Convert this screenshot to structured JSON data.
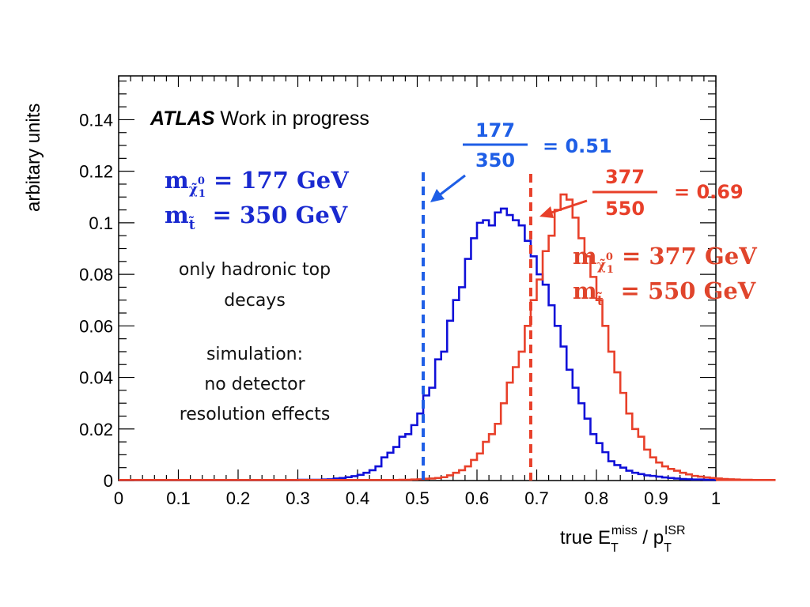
{
  "chart_data": {
    "type": "histogram",
    "xlabel": {
      "main": "true E",
      "sub1": "T",
      "sup1": "miss",
      "slash": " / p",
      "sub2": "T",
      "sup2": "ISR"
    },
    "ylabel": "arbitary units",
    "xlim": [
      0,
      1
    ],
    "ylim": [
      0,
      0.157
    ],
    "x_ticks": [
      "0",
      "0.1",
      "0.2",
      "0.3",
      "0.4",
      "0.5",
      "0.6",
      "0.7",
      "0.8",
      "0.9",
      "1"
    ],
    "y_ticks": [
      "0",
      "0.02",
      "0.04",
      "0.06",
      "0.08",
      "0.1",
      "0.12",
      "0.14"
    ],
    "bin_width": 0.01,
    "series": [
      {
        "name": "m_chi = 177 GeV, m_stop = 350 GeV",
        "color": "#1010d8",
        "bin_start": 0.3,
        "values": [
          0.0003,
          0.0003,
          0.0003,
          0.0003,
          0.0004,
          0.0005,
          0.0008,
          0.001,
          0.0013,
          0.0017,
          0.0022,
          0.003,
          0.004,
          0.0055,
          0.009,
          0.0108,
          0.013,
          0.017,
          0.018,
          0.0215,
          0.026,
          0.033,
          0.036,
          0.047,
          0.05,
          0.062,
          0.07,
          0.075,
          0.086,
          0.094,
          0.1,
          0.101,
          0.099,
          0.104,
          0.1055,
          0.103,
          0.101,
          0.099,
          0.093,
          0.087,
          0.08,
          0.076,
          0.068,
          0.06,
          0.052,
          0.043,
          0.036,
          0.03,
          0.024,
          0.018,
          0.0145,
          0.011,
          0.0075,
          0.006,
          0.005,
          0.0038,
          0.003,
          0.0025,
          0.002,
          0.0018,
          0.0015,
          0.0012,
          0.001,
          0.0008,
          0.0006,
          0.0005,
          0.0004,
          0.0004,
          0.0003,
          0.0003
        ]
      },
      {
        "name": "m_chi = 377 GeV, m_stop = 550 GeV",
        "color": "#e8402a",
        "bin_start": 0.45,
        "values": [
          0.0002,
          0.0002,
          0.0003,
          0.0003,
          0.0004,
          0.0005,
          0.0007,
          0.0008,
          0.001,
          0.0013,
          0.002,
          0.003,
          0.004,
          0.0055,
          0.008,
          0.0105,
          0.015,
          0.018,
          0.022,
          0.03,
          0.038,
          0.044,
          0.05,
          0.06,
          0.07,
          0.078,
          0.089,
          0.095,
          0.105,
          0.111,
          0.109,
          0.102,
          0.094,
          0.087,
          0.079,
          0.07,
          0.06,
          0.05,
          0.042,
          0.034,
          0.026,
          0.02,
          0.017,
          0.012,
          0.009,
          0.007,
          0.0055,
          0.0045,
          0.0038,
          0.003,
          0.0024,
          0.0018,
          0.0015,
          0.0012,
          0.001,
          0.0008,
          0.0006,
          0.0005,
          0.0004,
          0.0003,
          0.0003,
          0.0002,
          0.0002,
          0.0002,
          0.0002
        ]
      }
    ],
    "vlines": [
      {
        "x": 0.51,
        "color": "#1e5ee6"
      },
      {
        "x": 0.69,
        "color": "#e8402a"
      }
    ]
  },
  "annotations": {
    "atlas_bold": "ATLAS",
    "atlas_rest": " Work in progress",
    "note1_line1": "only hadronic top",
    "note1_line2": "decays",
    "note2_line1": "simulation:",
    "note2_line2": "no detector",
    "note2_line3": "resolution effects",
    "blue_ratio": {
      "num": "177",
      "den": "350",
      "result": "= 0.51",
      "color": "#1e5ee6"
    },
    "red_ratio": {
      "num": "377",
      "den": "550",
      "result": "= 0.69",
      "color": "#e8402a"
    },
    "blue_mass": {
      "chi_value": "= 177 GeV",
      "stop_value": "= 350 GeV",
      "color": "#1a2ad0"
    },
    "red_mass": {
      "chi_value": "= 377 GeV",
      "stop_value": "= 550 GeV",
      "color": "#e0452c"
    }
  }
}
